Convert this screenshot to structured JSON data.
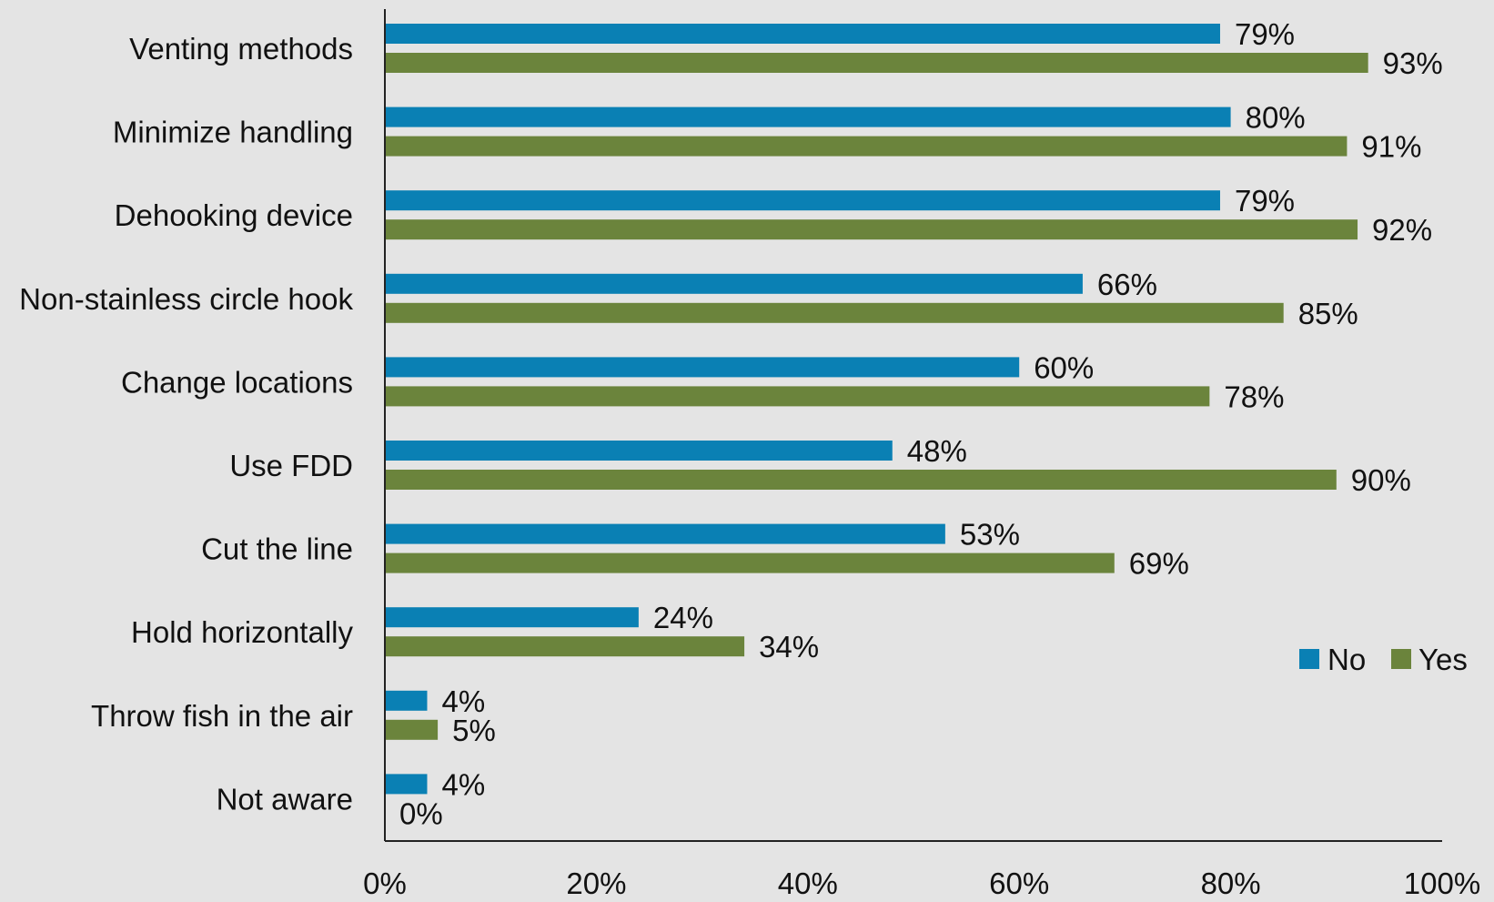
{
  "chart_data": {
    "type": "bar",
    "orientation": "horizontal",
    "categories": [
      "Venting methods",
      "Minimize handling",
      "Dehooking device",
      "Non-stainless circle hook",
      "Change locations",
      "Use FDD",
      "Cut the line",
      "Hold horizontally",
      "Throw fish in the air",
      "Not aware"
    ],
    "series": [
      {
        "name": "No",
        "color": "#0a80b4",
        "values": [
          79,
          80,
          79,
          66,
          60,
          48,
          53,
          24,
          4,
          4
        ]
      },
      {
        "name": "Yes",
        "color": "#6b843c",
        "values": [
          93,
          91,
          92,
          85,
          78,
          90,
          69,
          34,
          5,
          0
        ]
      }
    ],
    "value_format": "{v}%",
    "xlim": [
      0,
      100
    ],
    "xticks": [
      0,
      20,
      40,
      60,
      80,
      100
    ],
    "xtick_labels": [
      "0%",
      "20%",
      "40%",
      "60%",
      "80%",
      "100%"
    ],
    "xlabel": "",
    "ylabel": "",
    "title": "",
    "grid": false,
    "legend_position": "right"
  }
}
